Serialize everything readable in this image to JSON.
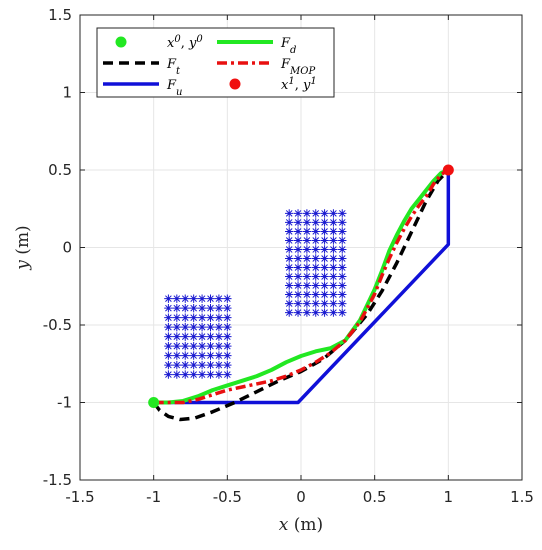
{
  "chart_data": {
    "type": "line",
    "title": "",
    "xlabel": {
      "var": "x",
      "unit": " (m)"
    },
    "ylabel": {
      "var": "y",
      "unit": " (m)"
    },
    "xlim": [
      -1.5,
      1.5
    ],
    "ylim": [
      -1.5,
      1.5
    ],
    "xticks": [
      -1.5,
      -1,
      -0.5,
      0,
      0.5,
      1,
      1.5
    ],
    "yticks": [
      -1.5,
      -1,
      -0.5,
      0,
      0.5,
      1,
      1.5
    ],
    "xtick_labels": [
      "-1.5",
      "-1",
      "-0.5",
      "0",
      "0.5",
      "1",
      "1.5"
    ],
    "ytick_labels": [
      "-1.5",
      "-1",
      "-0.5",
      "0",
      "0.5",
      "1",
      "1.5"
    ],
    "grid": true,
    "legend": "top-left",
    "legend_entries": [
      {
        "key": "start",
        "base": "x",
        "sup": "0",
        "sep": ", ",
        "base2": "y",
        "sup2": "0"
      },
      {
        "key": "Fd",
        "base": "F",
        "sub": "d"
      },
      {
        "key": "Ft",
        "base": "F",
        "sub": "t"
      },
      {
        "key": "Fmop",
        "base": "F",
        "sub": "MOP"
      },
      {
        "key": "Fu",
        "base": "F",
        "sub": "u"
      },
      {
        "key": "goal",
        "base": "x",
        "sup": "1",
        "sep": ", ",
        "base2": "y",
        "sup2": "1"
      }
    ],
    "colors": {
      "Fd": "#22e822",
      "Ft": "#000000",
      "Fu": "#1010d8",
      "Fmop": "#e81010",
      "start": "#22e822",
      "goal": "#f01010",
      "obstacles": "#1a1ad0"
    },
    "start_point": {
      "x": -1,
      "y": -1
    },
    "goal_point": {
      "x": 1,
      "y": 0.5
    },
    "obstacles": [
      {
        "x_range": [
          -0.9,
          -0.5
        ],
        "y_range": [
          -0.82,
          -0.33
        ],
        "nx": 8,
        "ny": 9
      },
      {
        "x_range": [
          -0.08,
          0.28
        ],
        "y_range": [
          -0.42,
          0.22
        ],
        "nx": 7,
        "ny": 12
      }
    ],
    "series": [
      {
        "key": "Fu",
        "x": [
          -1,
          -0.02,
          1,
          1
        ],
        "y": [
          -1,
          -1,
          0.02,
          0.5
        ]
      },
      {
        "key": "Ft",
        "x": [
          -1,
          -0.96,
          -0.9,
          -0.82,
          -0.72,
          -0.6,
          -0.45,
          -0.3,
          -0.15,
          0,
          0.15,
          0.3,
          0.45,
          0.55,
          0.65,
          0.75,
          0.85,
          0.93,
          0.98,
          1
        ],
        "y": [
          -1,
          -1.05,
          -1.09,
          -1.11,
          -1.1,
          -1.06,
          -1.0,
          -0.93,
          -0.86,
          -0.8,
          -0.72,
          -0.6,
          -0.43,
          -0.28,
          -0.1,
          0.1,
          0.3,
          0.43,
          0.48,
          0.5
        ]
      },
      {
        "key": "Fd",
        "x": [
          -1,
          -0.9,
          -0.8,
          -0.7,
          -0.6,
          -0.5,
          -0.4,
          -0.3,
          -0.2,
          -0.1,
          0,
          0.1,
          0.2,
          0.3,
          0.4,
          0.5,
          0.55,
          0.6,
          0.65,
          0.7,
          0.75,
          0.8,
          0.85,
          0.9,
          0.95,
          1
        ],
        "y": [
          -1,
          -1.0,
          -0.99,
          -0.96,
          -0.92,
          -0.89,
          -0.86,
          -0.83,
          -0.79,
          -0.74,
          -0.7,
          -0.67,
          -0.65,
          -0.6,
          -0.47,
          -0.27,
          -0.15,
          -0.02,
          0.08,
          0.17,
          0.25,
          0.31,
          0.37,
          0.43,
          0.48,
          0.5
        ]
      },
      {
        "key": "Fmop",
        "x": [
          -1,
          -0.9,
          -0.8,
          -0.7,
          -0.6,
          -0.5,
          -0.4,
          -0.3,
          -0.2,
          -0.1,
          0,
          0.1,
          0.2,
          0.3,
          0.4,
          0.5,
          0.55,
          0.6,
          0.65,
          0.7,
          0.75,
          0.8,
          0.85,
          0.9,
          0.95,
          1
        ],
        "y": [
          -1,
          -1.0,
          -1.0,
          -0.98,
          -0.95,
          -0.92,
          -0.9,
          -0.88,
          -0.86,
          -0.83,
          -0.79,
          -0.74,
          -0.68,
          -0.6,
          -0.48,
          -0.3,
          -0.18,
          -0.07,
          0.03,
          0.12,
          0.2,
          0.27,
          0.33,
          0.41,
          0.47,
          0.5
        ]
      }
    ]
  }
}
